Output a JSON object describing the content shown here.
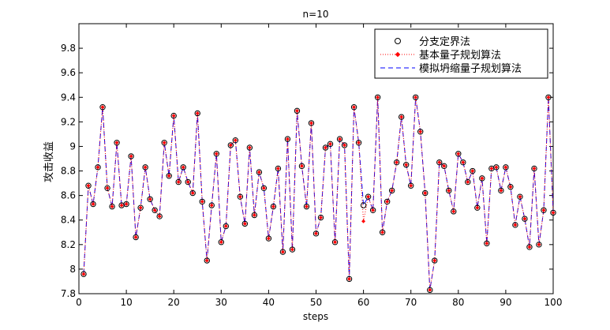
{
  "chart_data": {
    "type": "line",
    "title": "n=10",
    "xlabel": "steps",
    "ylabel": "攻击收益",
    "xlim": [
      0,
      100
    ],
    "ylim": [
      7.8,
      10.0
    ],
    "xticks": [
      0,
      10,
      20,
      30,
      40,
      50,
      60,
      70,
      80,
      90,
      100
    ],
    "yticks": [
      7.8,
      8,
      8.2,
      8.4,
      8.6,
      8.8,
      9,
      9.2,
      9.4,
      9.6,
      9.8
    ],
    "ytick_labels": [
      "7.8",
      "8",
      "8.2",
      "8.4",
      "8.6",
      "8.8",
      "9",
      "9.2",
      "9.4",
      "9.6",
      "9.8"
    ],
    "grid": false,
    "legend_position": "top-right",
    "x": [
      1,
      2,
      3,
      4,
      5,
      6,
      7,
      8,
      9,
      10,
      11,
      12,
      13,
      14,
      15,
      16,
      17,
      18,
      19,
      20,
      21,
      22,
      23,
      24,
      25,
      26,
      27,
      28,
      29,
      30,
      31,
      32,
      33,
      34,
      35,
      36,
      37,
      38,
      39,
      40,
      41,
      42,
      43,
      44,
      45,
      46,
      47,
      48,
      49,
      50,
      51,
      52,
      53,
      54,
      55,
      56,
      57,
      58,
      59,
      60,
      61,
      62,
      63,
      64,
      65,
      66,
      67,
      68,
      69,
      70,
      71,
      72,
      73,
      74,
      75,
      76,
      77,
      78,
      79,
      80,
      81,
      82,
      83,
      84,
      85,
      86,
      87,
      88,
      89,
      90,
      91,
      92,
      93,
      94,
      95,
      96,
      97,
      98,
      99,
      100
    ],
    "series": [
      {
        "name": "分支定界法",
        "style": "marker-circle",
        "color": "#000000",
        "values": [
          7.96,
          8.68,
          8.53,
          8.83,
          9.32,
          8.66,
          8.51,
          9.03,
          8.52,
          8.53,
          8.92,
          8.26,
          8.5,
          8.83,
          8.57,
          8.48,
          8.43,
          9.03,
          8.76,
          9.25,
          8.71,
          8.83,
          8.71,
          8.62,
          9.27,
          8.55,
          8.07,
          8.52,
          8.94,
          8.22,
          8.35,
          9.01,
          9.05,
          8.59,
          8.37,
          8.99,
          8.44,
          8.79,
          8.66,
          8.25,
          8.51,
          8.82,
          8.14,
          9.06,
          8.16,
          9.29,
          8.84,
          8.51,
          9.19,
          8.29,
          8.42,
          8.99,
          9.02,
          8.22,
          9.06,
          9.01,
          7.92,
          9.32,
          9.03,
          8.52,
          8.59,
          8.48,
          9.4,
          8.3,
          8.55,
          8.64,
          8.87,
          9.24,
          8.85,
          8.68,
          9.4,
          9.12,
          8.62,
          7.83,
          8.07,
          8.87,
          8.84,
          8.64,
          8.47,
          8.94,
          8.87,
          8.71,
          8.8,
          8.5,
          8.74,
          8.21,
          8.82,
          8.83,
          8.64,
          8.83,
          8.67,
          8.36,
          8.59,
          8.41,
          8.18,
          8.82,
          8.2,
          8.48,
          9.4,
          8.46
        ]
      },
      {
        "name": "基本量子规划算法",
        "style": "dotted-diamond",
        "color": "#ff0000",
        "values": [
          7.96,
          8.68,
          8.53,
          8.83,
          9.32,
          8.66,
          8.51,
          9.03,
          8.52,
          8.53,
          8.92,
          8.26,
          8.5,
          8.83,
          8.57,
          8.48,
          8.43,
          9.03,
          8.76,
          9.25,
          8.71,
          8.83,
          8.71,
          8.62,
          9.27,
          8.55,
          8.07,
          8.52,
          8.94,
          8.22,
          8.35,
          9.01,
          9.05,
          8.59,
          8.37,
          8.99,
          8.44,
          8.79,
          8.66,
          8.25,
          8.51,
          8.82,
          8.14,
          9.06,
          8.16,
          9.29,
          8.84,
          8.51,
          9.19,
          8.29,
          8.42,
          8.99,
          9.02,
          8.22,
          9.06,
          9.01,
          7.92,
          9.32,
          9.03,
          8.39,
          8.59,
          8.48,
          9.4,
          8.3,
          8.55,
          8.64,
          8.87,
          9.24,
          8.85,
          8.68,
          9.4,
          9.12,
          8.62,
          7.83,
          8.07,
          8.87,
          8.84,
          8.64,
          8.47,
          8.94,
          8.87,
          8.71,
          8.8,
          8.5,
          8.74,
          8.21,
          8.82,
          8.83,
          8.64,
          8.83,
          8.67,
          8.36,
          8.59,
          8.41,
          8.18,
          8.82,
          8.2,
          8.48,
          9.4,
          8.46
        ]
      },
      {
        "name": "模拟坍缩量子规划算法",
        "style": "dashed",
        "color": "#0000ff",
        "values": [
          7.96,
          8.68,
          8.53,
          8.83,
          9.32,
          8.66,
          8.51,
          9.03,
          8.52,
          8.53,
          8.92,
          8.26,
          8.5,
          8.83,
          8.57,
          8.48,
          8.43,
          9.03,
          8.76,
          9.25,
          8.71,
          8.83,
          8.71,
          8.62,
          9.27,
          8.55,
          8.07,
          8.52,
          8.94,
          8.22,
          8.35,
          9.01,
          9.05,
          8.59,
          8.37,
          8.99,
          8.44,
          8.79,
          8.66,
          8.25,
          8.51,
          8.82,
          8.14,
          9.06,
          8.16,
          9.29,
          8.84,
          8.51,
          9.19,
          8.29,
          8.42,
          8.99,
          9.02,
          8.22,
          9.06,
          9.01,
          7.92,
          9.32,
          9.03,
          8.52,
          8.59,
          8.48,
          9.4,
          8.3,
          8.55,
          8.64,
          8.87,
          9.24,
          8.85,
          8.68,
          9.4,
          9.12,
          8.62,
          7.83,
          8.07,
          8.87,
          8.84,
          8.64,
          8.47,
          8.94,
          8.87,
          8.71,
          8.8,
          8.5,
          8.74,
          8.21,
          8.82,
          8.83,
          8.64,
          8.83,
          8.67,
          8.36,
          8.59,
          8.41,
          8.18,
          8.82,
          8.2,
          8.48,
          9.4,
          8.46
        ]
      }
    ]
  }
}
